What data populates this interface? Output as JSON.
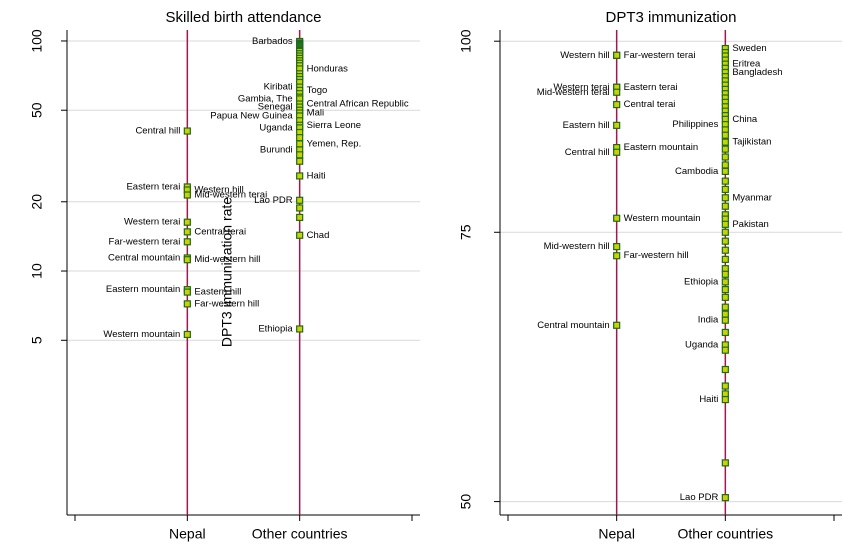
{
  "chart_data": [
    {
      "type": "strip",
      "title": "Skilled birth attendance",
      "log": true,
      "grid": true,
      "line_color": "#a3174f",
      "marker_color": "#c8d300",
      "marker_edge": "#1e6b1e",
      "ylim": [
        0.87,
        111.6
      ],
      "yticks": [
        5,
        10,
        20,
        50,
        100
      ],
      "categories": [
        null,
        "Nepal",
        "Other countries",
        null
      ],
      "values": [
        null,
        [
          40.6,
          23.2,
          22.5,
          21.4,
          16.3,
          14.8,
          13.4,
          11.4,
          11.2,
          8.3,
          8.1,
          7.2,
          5.3
        ],
        [
          99.5,
          98,
          97,
          96,
          95,
          94,
          93,
          92,
          91,
          90,
          88,
          86,
          84,
          82,
          80,
          78,
          75.6,
          72,
          70,
          68,
          66,
          63,
          61,
          59,
          57,
          56,
          53.2,
          51.6,
          50,
          48.6,
          47.2,
          45,
          43,
          41.9,
          40,
          38,
          35.7,
          33.6,
          32,
          30,
          25.9,
          20.3,
          18.8,
          17.1,
          14.3,
          5.6
        ],
        null
      ],
      "labels": [
        null,
        [
          "Central hill",
          "Eastern terai",
          "Western hill",
          "Mid-western terai",
          "Western terai",
          "Central terai",
          "Far-western terai",
          "Central mountain",
          "Mid-western hill",
          "Eastern mountain",
          "Eastern hill",
          "Far-western hill",
          "Western mountain"
        ],
        [
          "Barbados",
          null,
          null,
          null,
          null,
          null,
          null,
          null,
          null,
          null,
          null,
          null,
          null,
          null,
          null,
          null,
          "Honduras",
          null,
          null,
          null,
          null,
          "Kiribati",
          "Togo",
          null,
          null,
          "Gambia, The",
          "Central African Republic",
          "Senegal",
          null,
          "Mali",
          "Papua New Guinea",
          null,
          "Sierra Leone",
          "Uganda",
          null,
          null,
          "Yemen, Rep.",
          "Burundi",
          null,
          null,
          "Haiti",
          "Lao PDR",
          null,
          null,
          "Chad",
          "Ethiopia"
        ],
        null
      ]
    },
    {
      "type": "strip",
      "title": "DPT3 immunization",
      "ylabel": "DPT3 immunization rate",
      "log": true,
      "grid": true,
      "line_color": "#a3174f",
      "marker_color": "#c8d300",
      "marker_edge": "#1e6b1e",
      "ylim": [
        49,
        101.7
      ],
      "yticks": [
        50,
        75,
        100
      ],
      "categories": [
        null,
        "Nepal",
        "Other countries",
        null
      ],
      "values": [
        null,
        [
          97.9,
          97.9,
          93.3,
          93.3,
          92.6,
          90.9,
          88.1,
          85.2,
          84.6,
          76.6,
          73.4,
          72.4,
          65.2
        ],
        [
          98.9,
          98.3,
          97.8,
          97.2,
          96.6,
          96,
          95.4,
          94.8,
          94.2,
          93.6,
          93,
          92.4,
          91.8,
          91.2,
          90.6,
          90,
          89.4,
          88.9,
          88.2,
          87.5,
          86.8,
          85.9,
          85,
          84,
          83,
          82.2,
          81,
          80,
          79,
          78,
          77,
          76.5,
          75.9,
          75,
          74,
          73,
          72,
          71,
          70.4,
          69.6,
          68.8,
          68,
          67,
          66.3,
          65.7,
          64.5,
          63.3,
          62.8,
          61,
          59.5,
          58.8,
          58.3,
          53,
          50.3
        ],
        null
      ],
      "labels": [
        null,
        [
          "Western hill",
          "Far-western terai",
          "Western terai",
          "Eastern terai",
          "Mid-western terai",
          "Central terai",
          "Eastern hill",
          "Eastern mountain",
          "Central hill",
          "Western mountain",
          "Mid-western hill",
          "Far-western hill",
          "Central mountain"
        ],
        [
          "Sweden",
          null,
          null,
          null,
          "Eritrea",
          null,
          "Bangladesh",
          null,
          null,
          null,
          null,
          null,
          null,
          null,
          null,
          null,
          null,
          "China",
          "Philippines",
          null,
          null,
          "Tajikistan",
          null,
          null,
          null,
          "Cambodia",
          null,
          null,
          "Myanmar",
          null,
          null,
          null,
          "Pakistan",
          null,
          null,
          null,
          null,
          null,
          null,
          "Ethiopia",
          null,
          null,
          null,
          null,
          "India",
          null,
          "Uganda",
          null,
          null,
          null,
          null,
          "Haiti",
          null,
          "Lao PDR"
        ],
        null
      ]
    }
  ]
}
